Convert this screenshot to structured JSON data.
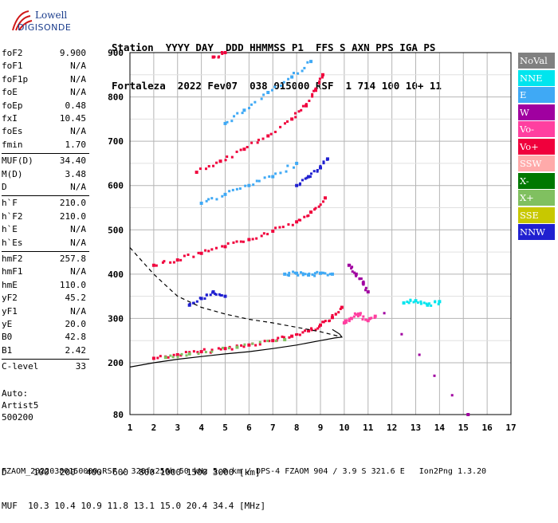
{
  "header": {
    "line1": [
      "Station",
      "YYYY DAY",
      "DDD HHMMSS P1",
      "FFS S AXN PPS IGA PS"
    ],
    "line2": [
      "Fortaleza",
      "2022 Fev07",
      "038 015000 RSF",
      "1 714 100 10+ 11"
    ]
  },
  "logo": {
    "line1": "Lowell",
    "line2": "DIGISONDE"
  },
  "params": [
    {
      "k": "foF2",
      "v": "9.900"
    },
    {
      "k": "foF1",
      "v": "N/A"
    },
    {
      "k": "foF1p",
      "v": "N/A"
    },
    {
      "k": "foE",
      "v": "N/A"
    },
    {
      "k": "foEp",
      "v": "0.48"
    },
    {
      "k": "fxI",
      "v": "10.45"
    },
    {
      "k": "foEs",
      "v": "N/A"
    },
    {
      "k": "fmin",
      "v": "1.70"
    },
    {
      "k": "MUF(D)",
      "v": "34.40"
    },
    {
      "k": "M(D)",
      "v": "3.48"
    },
    {
      "k": "D",
      "v": "N/A"
    },
    {
      "k": "h`F",
      "v": "210.0"
    },
    {
      "k": "h`F2",
      "v": "210.0"
    },
    {
      "k": "h`E",
      "v": "N/A"
    },
    {
      "k": "h`Es",
      "v": "N/A"
    },
    {
      "k": "hmF2",
      "v": "257.8"
    },
    {
      "k": "hmF1",
      "v": "N/A"
    },
    {
      "k": "hmE",
      "v": "110.0"
    },
    {
      "k": "yF2",
      "v": "45.2"
    },
    {
      "k": "yF1",
      "v": "N/A"
    },
    {
      "k": "yE",
      "v": "20.0"
    },
    {
      "k": "B0",
      "v": "42.8"
    },
    {
      "k": "B1",
      "v": "2.42"
    },
    {
      "k": "C-level",
      "v": "33"
    }
  ],
  "auto": [
    "Auto:",
    "Artist5",
    "500200"
  ],
  "legend": [
    {
      "label": "NoVal",
      "color": "#808080"
    },
    {
      "label": "NNE",
      "color": "#00e5ee"
    },
    {
      "label": "E",
      "color": "#3fa9f5"
    },
    {
      "label": "W",
      "color": "#a000a0"
    },
    {
      "label": "Vo-",
      "color": "#ff3fa0"
    },
    {
      "label": "Vo+",
      "color": "#f0003c"
    },
    {
      "label": "SSW",
      "color": "#ffaaaa"
    },
    {
      "label": "X-",
      "color": "#007800"
    },
    {
      "label": "X+",
      "color": "#80c060"
    },
    {
      "label": "SSE",
      "color": "#c8c800"
    },
    {
      "label": "NNW",
      "color": "#2020d0"
    }
  ],
  "bottom": {
    "d_row": "D     100  200  400  600  800 1000 1500 3000 [km]",
    "muf_row": "MUF  10.3 10.4 10.9 11.8 13.1 15.0 20.4 34.4 [MHz]",
    "footer": "FZAOM_20220380150000.RSF / 320fx256h 50 kHz 5.0 km / DPS-4 FZAOM 904 / 3.9 S 321.6 E   Ion2Png 1.3.20"
  },
  "chart_data": {
    "type": "scatter",
    "xlim": [
      1,
      17
    ],
    "ylim": [
      80,
      900
    ],
    "x_ticks": [
      1,
      2,
      3,
      4,
      5,
      6,
      7,
      8,
      9,
      10,
      11,
      12,
      13,
      14,
      15,
      16,
      17
    ],
    "y_ticks": [
      80,
      200,
      300,
      400,
      500,
      600,
      700,
      800,
      900
    ],
    "grid": true,
    "series": [
      {
        "color": "#f0003c",
        "points": [
          [
            2.0,
            210
          ],
          [
            3.0,
            218
          ],
          [
            4.0,
            225
          ],
          [
            5.0,
            232
          ],
          [
            6.0,
            240
          ],
          [
            7.0,
            250
          ],
          [
            7.8,
            260
          ],
          [
            8.5,
            272
          ],
          [
            9.0,
            285
          ],
          [
            9.5,
            302
          ],
          [
            9.9,
            325
          ]
        ]
      },
      {
        "color": "#f0003c",
        "points": [
          [
            2.0,
            420
          ],
          [
            3.0,
            432
          ],
          [
            4.0,
            447
          ],
          [
            5.0,
            462
          ],
          [
            6.0,
            478
          ],
          [
            7.0,
            497
          ],
          [
            8.0,
            518
          ],
          [
            8.6,
            540
          ],
          [
            9.2,
            572
          ]
        ]
      },
      {
        "color": "#f0003c",
        "points": [
          [
            3.8,
            630
          ],
          [
            4.8,
            655
          ],
          [
            5.8,
            682
          ],
          [
            6.8,
            712
          ],
          [
            7.8,
            750
          ],
          [
            8.4,
            780
          ],
          [
            8.8,
            815
          ],
          [
            9.1,
            850
          ]
        ]
      },
      {
        "color": "#f0003c",
        "points": [
          [
            4.5,
            890
          ],
          [
            5.0,
            900
          ]
        ]
      },
      {
        "color": "#3fa9f5",
        "points": [
          [
            5.0,
            740
          ],
          [
            5.8,
            770
          ],
          [
            6.8,
            810
          ],
          [
            7.8,
            845
          ],
          [
            8.6,
            880
          ]
        ]
      },
      {
        "color": "#3fa9f5",
        "points": [
          [
            4.0,
            560
          ],
          [
            5.0,
            580
          ],
          [
            6.0,
            600
          ],
          [
            7.0,
            620
          ],
          [
            8.0,
            650
          ]
        ]
      },
      {
        "color": "#3fa9f5",
        "points": [
          [
            7.5,
            400
          ],
          [
            8.0,
            402
          ],
          [
            8.5,
            398
          ],
          [
            9.0,
            402
          ],
          [
            9.5,
            400
          ]
        ]
      },
      {
        "color": "#2020d0",
        "points": [
          [
            8.0,
            600
          ],
          [
            8.5,
            620
          ],
          [
            9.0,
            640
          ],
          [
            9.3,
            660
          ]
        ]
      },
      {
        "color": "#2020d0",
        "points": [
          [
            3.5,
            330
          ],
          [
            4.0,
            345
          ],
          [
            4.5,
            360
          ],
          [
            5.0,
            350
          ]
        ]
      },
      {
        "color": "#ff3fa0",
        "points": [
          [
            10.0,
            290
          ],
          [
            10.3,
            300
          ],
          [
            10.6,
            310
          ],
          [
            11.0,
            295
          ],
          [
            11.3,
            305
          ]
        ]
      },
      {
        "color": "#00e5ee",
        "points": [
          [
            12.5,
            335
          ],
          [
            13.0,
            340
          ],
          [
            13.5,
            330
          ],
          [
            14.0,
            338
          ]
        ]
      },
      {
        "color": "#80c060",
        "points": [
          [
            2.5,
            212
          ],
          [
            3.5,
            220
          ],
          [
            5.5,
            235
          ],
          [
            7.5,
            252
          ]
        ]
      },
      {
        "color": "#a000a0",
        "points": [
          [
            10.2,
            420
          ],
          [
            10.5,
            400
          ],
          [
            10.8,
            380
          ],
          [
            11.0,
            360
          ],
          [
            15.2,
            80
          ]
        ]
      }
    ],
    "profile_solid": [
      [
        1.0,
        190
      ],
      [
        2.0,
        200
      ],
      [
        3.0,
        208
      ],
      [
        4.0,
        214
      ],
      [
        5.0,
        220
      ],
      [
        6.0,
        225
      ],
      [
        7.0,
        232
      ],
      [
        8.0,
        240
      ],
      [
        9.0,
        250
      ],
      [
        9.6,
        256
      ],
      [
        9.9,
        258
      ],
      [
        9.8,
        265
      ],
      [
        9.5,
        275
      ]
    ],
    "profile_dashed": [
      [
        1.0,
        460
      ],
      [
        1.5,
        430
      ],
      [
        2.0,
        400
      ],
      [
        2.5,
        375
      ],
      [
        3.0,
        350
      ],
      [
        4.0,
        325
      ],
      [
        5.0,
        310
      ],
      [
        6.0,
        298
      ],
      [
        7.0,
        290
      ],
      [
        8.0,
        280
      ],
      [
        9.0,
        270
      ],
      [
        9.6,
        262
      ],
      [
        9.9,
        258
      ]
    ]
  }
}
